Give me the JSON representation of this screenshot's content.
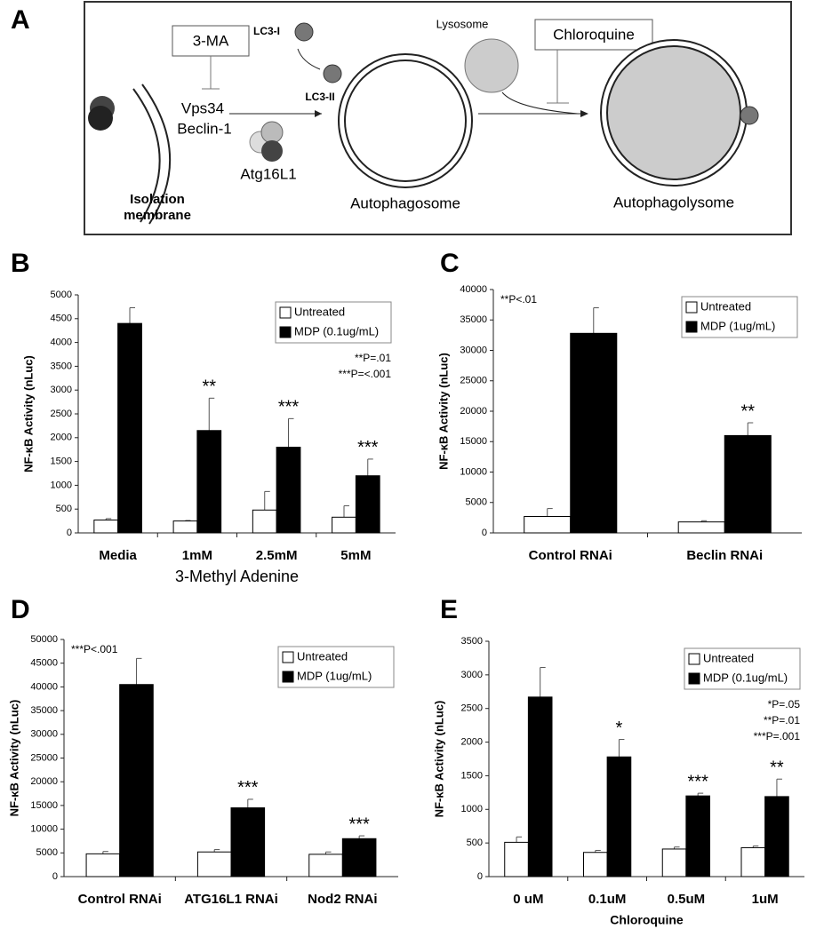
{
  "panel_labels": [
    "A",
    "B",
    "C",
    "D",
    "E"
  ],
  "diagram": {
    "inhibitor_1": "3-MA",
    "protein_1": "Vps34",
    "protein_2": "Beclin-1",
    "membrane_1": "Isolation",
    "membrane_2": "membrane",
    "lc3_1": "LC3-I",
    "lc3_2": "LC3-II",
    "complex": "Atg16L1",
    "stage_2": "Autophagosome",
    "lysosome": "Lysosome",
    "inhibitor_2": "Chloroquine",
    "stage_3": "Autophagolysome"
  },
  "chart_data": [
    {
      "type": "bar",
      "ylabel": "NF-κB Activity (nLuc)",
      "xlabel": "3-Methyl Adenine",
      "categories": [
        "Media",
        "1mM",
        "2.5mM",
        "5mM"
      ],
      "series": [
        {
          "name": "Untreated",
          "color": "#ffffff",
          "values": [
            270,
            250,
            480,
            330
          ],
          "errors": [
            30,
            10,
            390,
            240
          ]
        },
        {
          "name": "MDP (0.1ug/mL)",
          "color": "#000000",
          "values": [
            4400,
            2150,
            1800,
            1200
          ],
          "errors": [
            330,
            680,
            600,
            350
          ]
        }
      ],
      "significance": [
        null,
        "**",
        "***",
        "***"
      ],
      "notes": [
        "**P=.01",
        "***P=<.001"
      ],
      "ylim": [
        0,
        5000
      ],
      "yticks": [
        0,
        500,
        1000,
        1500,
        2000,
        2500,
        3000,
        3500,
        4000,
        4500,
        5000
      ],
      "legend": "upper right"
    },
    {
      "type": "bar",
      "ylabel": "NF-κB Activity (nLuc)",
      "categories": [
        "Control RNAi",
        "Beclin RNAi"
      ],
      "series": [
        {
          "name": "Untreated",
          "color": "#ffffff",
          "values": [
            2700,
            1800
          ],
          "errors": [
            1300,
            200
          ]
        },
        {
          "name": "MDP (1ug/mL)",
          "color": "#000000",
          "values": [
            32800,
            16000
          ],
          "errors": [
            4200,
            2100
          ]
        }
      ],
      "significance": [
        null,
        "**"
      ],
      "notes": [
        "**P<.01"
      ],
      "ylim": [
        0,
        40000
      ],
      "yticks": [
        0,
        5000,
        10000,
        15000,
        20000,
        25000,
        30000,
        35000,
        40000
      ],
      "legend": "upper right"
    },
    {
      "type": "bar",
      "ylabel": "NF-κB Activity (nLuc)",
      "categories": [
        "Control RNAi",
        "ATG16L1 RNAi",
        "Nod2 RNAi"
      ],
      "series": [
        {
          "name": "Untreated",
          "color": "#ffffff",
          "values": [
            4800,
            5200,
            4700
          ],
          "errors": [
            500,
            500,
            500
          ]
        },
        {
          "name": "MDP (1ug/mL)",
          "color": "#000000",
          "values": [
            40500,
            14500,
            8000
          ],
          "errors": [
            5500,
            1800,
            600
          ]
        }
      ],
      "significance": [
        null,
        "***",
        "***"
      ],
      "notes": [
        "***P<.001"
      ],
      "ylim": [
        0,
        50000
      ],
      "yticks": [
        0,
        5000,
        10000,
        15000,
        20000,
        25000,
        30000,
        35000,
        40000,
        45000,
        50000
      ],
      "legend": "upper right"
    },
    {
      "type": "bar",
      "ylabel": "NF-κB Activity (nLuc)",
      "xlabel": "Chloroquine",
      "categories": [
        "0 uM",
        "0.1uM",
        "0.5uM",
        "1uM"
      ],
      "series": [
        {
          "name": "Untreated",
          "color": "#ffffff",
          "values": [
            510,
            360,
            410,
            430
          ],
          "errors": [
            80,
            30,
            30,
            25
          ]
        },
        {
          "name": "MDP (0.1ug/mL)",
          "color": "#000000",
          "values": [
            2670,
            1780,
            1200,
            1190
          ],
          "errors": [
            440,
            260,
            40,
            260
          ]
        }
      ],
      "significance": [
        null,
        "*",
        "***",
        "**"
      ],
      "notes": [
        "*P=.05",
        "**P=.01",
        "***P=.001"
      ],
      "ylim": [
        0,
        3500
      ],
      "yticks": [
        0,
        500,
        1000,
        1500,
        2000,
        2500,
        3000,
        3500
      ],
      "legend": "upper right"
    }
  ]
}
